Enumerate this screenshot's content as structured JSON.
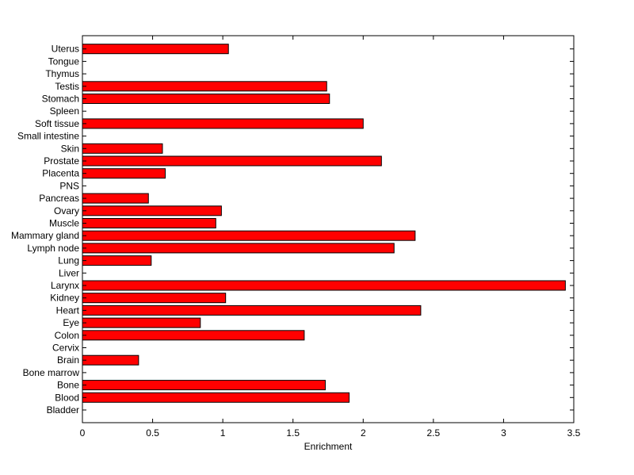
{
  "chart_data": {
    "type": "bar",
    "orientation": "horizontal",
    "title": "",
    "xlabel": "Enrichment",
    "ylabel": "",
    "xlim": [
      0,
      3.5
    ],
    "xticks": [
      0,
      0.5,
      1,
      1.5,
      2,
      2.5,
      3,
      3.5
    ],
    "xtick_labels": [
      "0",
      "0.5",
      "1",
      "1.5",
      "2",
      "2.5",
      "3",
      "3.5"
    ],
    "grid": false,
    "bar_color": "#ff0000",
    "bar_edge_color": "#000000",
    "categories": [
      "Bladder",
      "Blood",
      "Bone",
      "Bone marrow",
      "Brain",
      "Cervix",
      "Colon",
      "Eye",
      "Heart",
      "Kidney",
      "Larynx",
      "Liver",
      "Lung",
      "Lymph node",
      "Mammary gland",
      "Muscle",
      "Ovary",
      "Pancreas",
      "PNS",
      "Placenta",
      "Prostate",
      "Skin",
      "Small intestine",
      "Soft tissue",
      "Spleen",
      "Stomach",
      "Testis",
      "Thymus",
      "Tongue",
      "Uterus"
    ],
    "values": [
      0,
      1.9,
      1.73,
      0,
      0.4,
      0,
      1.58,
      0.84,
      2.41,
      1.02,
      3.44,
      0,
      0.49,
      2.22,
      2.37,
      0.95,
      0.99,
      0.47,
      0,
      0.59,
      2.13,
      0.57,
      0,
      2.0,
      0,
      1.76,
      1.74,
      0,
      0,
      1.04
    ]
  }
}
